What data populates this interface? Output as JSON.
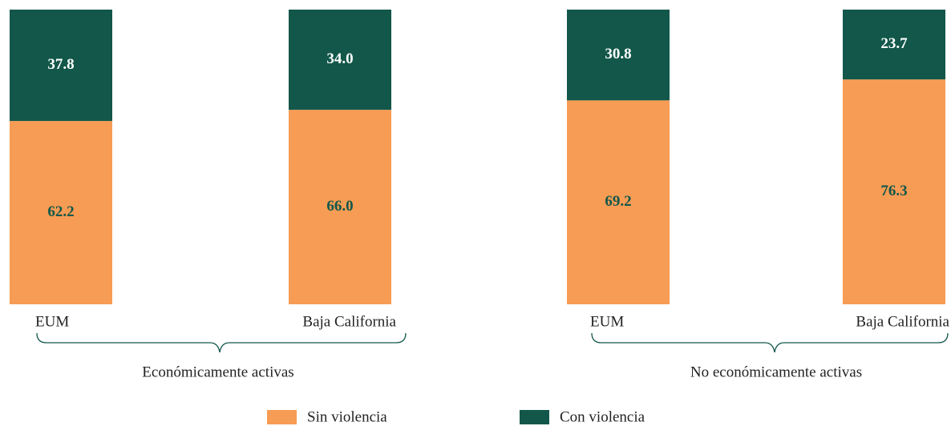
{
  "chart_data": {
    "type": "stacked_bar",
    "categories": [
      "EUM",
      "Baja California",
      "EUM",
      "Baja California"
    ],
    "groups": [
      "Económicamente activas",
      "No económicamente activas"
    ],
    "ylim": [
      0,
      100
    ],
    "series": [
      {
        "name": "Sin violencia",
        "color": "#f79c54",
        "values": [
          62.2,
          66.0,
          69.2,
          76.3
        ],
        "value_labels": [
          "62.2",
          "66.0",
          "69.2",
          "76.3"
        ]
      },
      {
        "name": "Con violencia",
        "color": "#12574a",
        "values": [
          37.8,
          34.0,
          30.8,
          23.7
        ],
        "value_labels": [
          "37.8",
          "34.0",
          "30.8",
          "23.7"
        ]
      }
    ]
  }
}
